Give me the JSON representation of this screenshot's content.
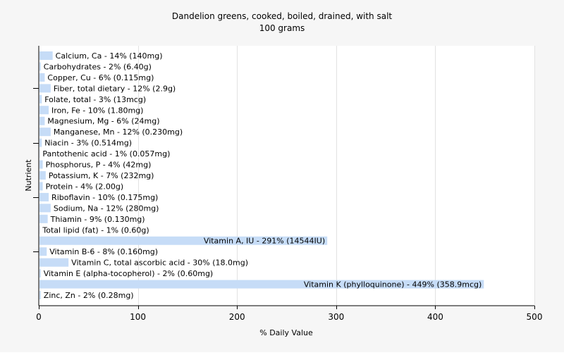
{
  "chart_data": {
    "type": "bar",
    "orientation": "horizontal",
    "title": "Dandelion greens, cooked, boiled, drained, with salt",
    "subtitle": "100 grams",
    "xlabel": "% Daily Value",
    "ylabel": "Nutrient",
    "xlim": [
      0,
      500
    ],
    "xticks": [
      0,
      100,
      200,
      300,
      400,
      500
    ],
    "grid": true,
    "bar_color": "#c6dcf7",
    "categories": [
      "Calcium, Ca",
      "Carbohydrates",
      "Copper, Cu",
      "Fiber, total dietary",
      "Folate, total",
      "Iron, Fe",
      "Magnesium, Mg",
      "Manganese, Mn",
      "Niacin",
      "Pantothenic acid",
      "Phosphorus, P",
      "Potassium, K",
      "Protein",
      "Riboflavin",
      "Sodium, Na",
      "Thiamin",
      "Total lipid (fat)",
      "Vitamin A, IU",
      "Vitamin B-6",
      "Vitamin C, total ascorbic acid",
      "Vitamin E (alpha-tocopherol)",
      "Vitamin K (phylloquinone)",
      "Zinc, Zn"
    ],
    "values": [
      14,
      2,
      6,
      12,
      3,
      10,
      6,
      12,
      3,
      1,
      4,
      7,
      4,
      10,
      12,
      9,
      1,
      291,
      8,
      30,
      2,
      449,
      2
    ],
    "data_labels": [
      "Calcium, Ca - 14% (140mg)",
      "Carbohydrates - 2% (6.40g)",
      "Copper, Cu - 6% (0.115mg)",
      "Fiber, total dietary - 12% (2.9g)",
      "Folate, total - 3% (13mcg)",
      "Iron, Fe - 10% (1.80mg)",
      "Magnesium, Mg - 6% (24mg)",
      "Manganese, Mn - 12% (0.230mg)",
      "Niacin - 3% (0.514mg)",
      "Pantothenic acid - 1% (0.057mg)",
      "Phosphorus, P - 4% (42mg)",
      "Potassium, K - 7% (232mg)",
      "Protein - 4% (2.00g)",
      "Riboflavin - 10% (0.175mg)",
      "Sodium, Na - 12% (280mg)",
      "Thiamin - 9% (0.130mg)",
      "Total lipid (fat) - 1% (0.60g)",
      "Vitamin A, IU - 291% (14544IU)",
      "Vitamin B-6 - 8% (0.160mg)",
      "Vitamin C, total ascorbic acid - 30% (18.0mg)",
      "Vitamin E (alpha-tocopherol) - 2% (0.60mg)",
      "Vitamin K (phylloquinone) - 449% (358.9mcg)",
      "Zinc, Zn - 2% (0.28mg)"
    ]
  }
}
